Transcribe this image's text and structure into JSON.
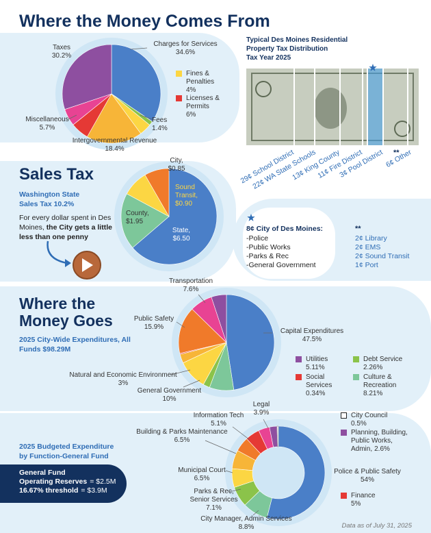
{
  "chart_data": [
    {
      "type": "pie",
      "title": "Where the Money Comes From",
      "categories": [
        "Charges for Services",
        "Fees",
        "Fines & Penalties",
        "Intergovernmental Revenue",
        "Licenses & Permits",
        "Miscellaneous",
        "Taxes"
      ],
      "values": [
        34.6,
        1.4,
        4,
        18.4,
        6,
        5.7,
        30.2
      ],
      "value_labels": [
        "34.6%",
        "1.4%",
        "4%",
        "18.4%",
        "6%",
        "5.7%",
        "30.2%"
      ],
      "colors": [
        "#4a7fc8",
        "#8bc34a",
        "#fcd643",
        "#f7b538",
        "#e53935",
        "#e84393",
        "#8e4fa0"
      ]
    },
    {
      "type": "pie",
      "title": "Sales Tax",
      "subtitle": "Washington State Sales Tax 10.2%",
      "categories": [
        "State,",
        "County,",
        "Sound Transit,",
        "City,"
      ],
      "values": [
        6.5,
        1.95,
        0.9,
        0.85
      ],
      "value_labels": [
        "$6.50",
        "$1.95",
        "$0.90",
        "$0.85"
      ],
      "colors": [
        "#4a7fc8",
        "#7dc79a",
        "#fcd643",
        "#f07a2a"
      ]
    },
    {
      "type": "pie",
      "title": [
        "Where the",
        "Money Goes"
      ],
      "subtitle": "2025 City-Wide Expenditures, All Funds $98.29M",
      "categories": [
        "Capital Expenditures",
        "Culture & Recreation",
        "Debt Service",
        "General Government",
        "Natural and Economic Environment",
        "Social Services",
        "Public Safety",
        "Transportation",
        "Utilities"
      ],
      "values": [
        47.5,
        8.21,
        2.26,
        10,
        3,
        0.34,
        15.9,
        7.6,
        5.11
      ],
      "value_labels": [
        "47.5%",
        "8.21%",
        "2.26%",
        "10%",
        "3%",
        "0.34%",
        "15.9%",
        "7.6%",
        "5.11%"
      ],
      "colors": [
        "#4a7fc8",
        "#7dc79a",
        "#8bc34a",
        "#fcd643",
        "#f7b538",
        "#e53935",
        "#f07a2a",
        "#e84393",
        "#8e4fa0"
      ]
    },
    {
      "type": "donut",
      "subtitle": "2025 Budgeted Expenditure by Function-General Fund",
      "categories": [
        "Police & Public Safety",
        "City Manager, Admin Services",
        "Parks & Rec, Senior Services",
        "Municipal Court",
        "Building & Parks Maintenance",
        "Information Tech",
        "Finance",
        "Legal",
        "Planning, Building, Public Works, Admin,",
        "City Council"
      ],
      "values": [
        54,
        8.8,
        7.1,
        6.5,
        6.5,
        5.1,
        5,
        3.9,
        2.6,
        0.5
      ],
      "value_labels": [
        "54%",
        "8.8%",
        "7.1%",
        "6.5%",
        "6.5%",
        "5.1%",
        "5%",
        "3.9%",
        "2.6%",
        "0.5%"
      ],
      "colors": [
        "#4a7fc8",
        "#7dc79a",
        "#8bc34a",
        "#fcd643",
        "#f7b538",
        "#f07a2a",
        "#e53935",
        "#e84393",
        "#8e4fa0",
        "#ffffff"
      ]
    }
  ],
  "property_tax": {
    "title": [
      "Typical Des Moines Residential",
      "Property Tax Distribution",
      "Tax Year 2025"
    ],
    "shares": [
      "29¢ School District",
      "22¢ WA State Schools",
      "13¢ King County",
      "11¢ Fire District",
      "3¢ Pool District",
      "6¢ Other"
    ],
    "other_marker": "**",
    "city_note": {
      "heading": "8¢ City of Des Moines:",
      "items": [
        "-Police",
        "-Public Works",
        "-Parks & Rec",
        "-General Government"
      ]
    },
    "other_note": {
      "heading": "**",
      "items": [
        "2¢ Library",
        "2¢ EMS",
        "2¢ Sound Transit",
        "1¢ Port"
      ]
    }
  },
  "sales_note": {
    "plain": "For every dollar spent in Des Moines,",
    "bold": "the City gets a little less than one penny"
  },
  "reserves": {
    "heading": "General Fund",
    "lines": [
      {
        "label": "Operating Reserves",
        "value": "= $2.5M"
      },
      {
        "label": "16.67% threshold",
        "value": "= $3.9M"
      }
    ]
  },
  "footer": "Data as of July 31, 2025"
}
